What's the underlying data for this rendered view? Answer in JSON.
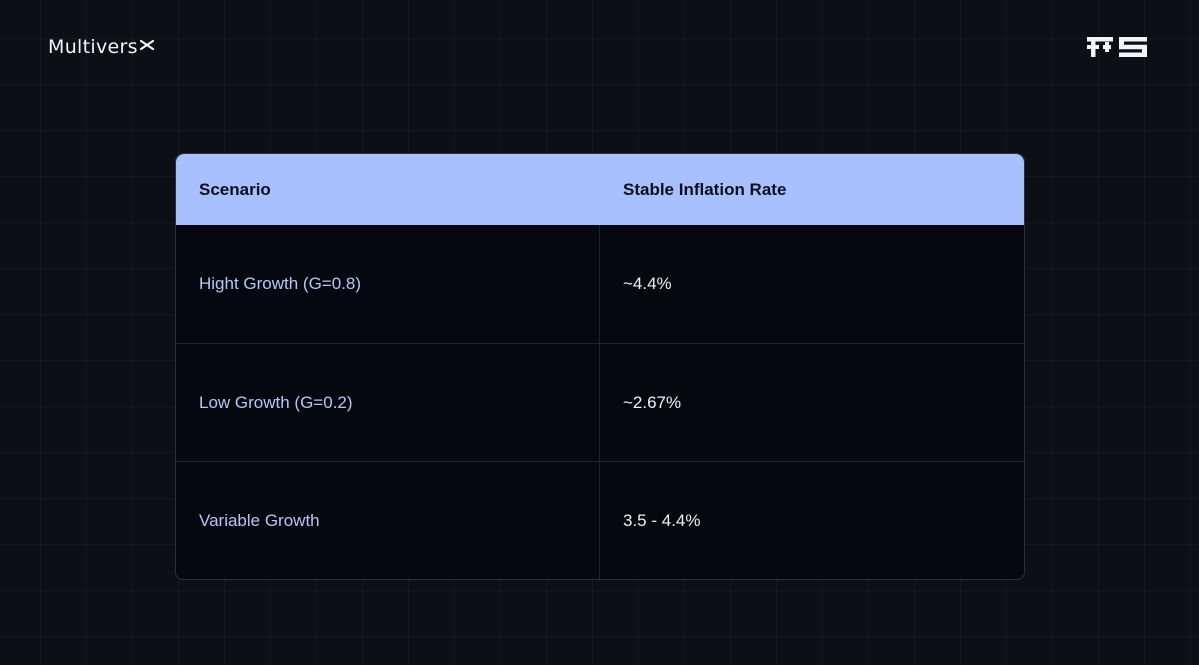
{
  "brand": {
    "name": "Multivers",
    "mark": "X"
  },
  "table": {
    "headers": [
      "Scenario",
      "Stable Inflation Rate"
    ],
    "rows": [
      {
        "scenario": "Hight Growth (G=0.8)",
        "rate": "~4.4%"
      },
      {
        "scenario": "Low Growth (G=0.2)",
        "rate": "~2.67%"
      },
      {
        "scenario": "Variable Growth",
        "rate": "3.5 - 4.4%"
      }
    ]
  },
  "colors": {
    "background": "#0d0f16",
    "header_bg": "#a9c0ff",
    "scenario_text": "#b6c6f6"
  },
  "icons": {
    "brand_mark": "multiversx-x-icon",
    "corner_logo": "fs-logo-icon"
  }
}
